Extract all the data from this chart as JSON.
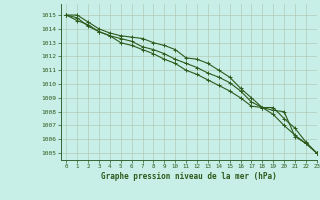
{
  "title": "Graphe pression niveau de la mer (hPa)",
  "bg_color": "#c8eee8",
  "grid_color": "#b0ccb8",
  "line_color": "#2d5a1b",
  "axis_color": "#336633",
  "xlim": [
    -0.5,
    23
  ],
  "ylim": [
    1004.5,
    1015.8
  ],
  "yticks": [
    1005,
    1006,
    1007,
    1008,
    1009,
    1010,
    1011,
    1012,
    1013,
    1014,
    1015
  ],
  "xticks": [
    0,
    1,
    2,
    3,
    4,
    5,
    6,
    7,
    8,
    9,
    10,
    11,
    12,
    13,
    14,
    15,
    16,
    17,
    18,
    19,
    20,
    21,
    22,
    23
  ],
  "series": [
    [
      1015.0,
      1014.8,
      1014.2,
      1013.8,
      1013.5,
      1013.3,
      1013.1,
      1012.7,
      1012.5,
      1012.2,
      1011.8,
      1011.5,
      1011.2,
      1010.8,
      1010.5,
      1010.1,
      1009.5,
      1008.7,
      1008.3,
      1007.8,
      1007.0,
      1006.3,
      1005.7,
      1005.0
    ],
    [
      1015.0,
      1014.6,
      1014.3,
      1013.8,
      1013.5,
      1013.0,
      1012.8,
      1012.5,
      1012.2,
      1011.8,
      1011.5,
      1011.0,
      1010.7,
      1010.3,
      1009.9,
      1009.5,
      1009.0,
      1008.4,
      1008.3,
      1008.1,
      1008.0,
      1006.2,
      1005.7,
      1005.0
    ],
    [
      1015.0,
      1015.0,
      1014.5,
      1014.0,
      1013.7,
      1013.5,
      1013.4,
      1013.3,
      1013.0,
      1012.8,
      1012.5,
      1011.9,
      1011.8,
      1011.5,
      1011.0,
      1010.5,
      1009.7,
      1009.0,
      1008.3,
      1008.3,
      1007.5,
      1006.8,
      1005.8,
      1005.0
    ]
  ]
}
